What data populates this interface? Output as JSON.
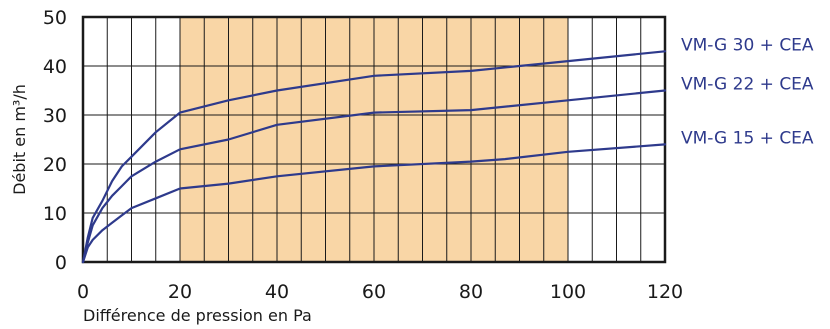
{
  "chart_data": {
    "type": "line",
    "title": "",
    "xlabel": "Différence de pression en Pa",
    "ylabel": "Débit en m³/h",
    "xlim": [
      0,
      120
    ],
    "ylim": [
      0,
      50
    ],
    "xticks": [
      0,
      20,
      40,
      60,
      80,
      100,
      120
    ],
    "yticks": [
      0,
      10,
      20,
      30,
      40,
      50
    ],
    "grid": true,
    "highlight_range_x": [
      20,
      100
    ],
    "highlight_color": "#f9d6a6",
    "line_color": "#2e3a8c",
    "series": [
      {
        "name": "VM-G 30 + CEA",
        "x": [
          0,
          1,
          2,
          4,
          6,
          8,
          10,
          15,
          20,
          30,
          40,
          60,
          80,
          90,
          100,
          120
        ],
        "y": [
          0,
          5,
          9,
          12.5,
          16.5,
          19.5,
          21.5,
          26.5,
          30.5,
          33,
          35,
          38,
          39,
          40,
          41,
          43
        ]
      },
      {
        "name": "VM-G 22 + CEA",
        "x": [
          0,
          1,
          2,
          4,
          6,
          8,
          10,
          15,
          20,
          30,
          40,
          60,
          80,
          100,
          120
        ],
        "y": [
          0,
          4,
          7.5,
          11,
          13.5,
          15.5,
          17.5,
          20.5,
          23,
          25,
          28,
          30.5,
          31,
          33,
          35
        ]
      },
      {
        "name": "VM-G 15 + CEA",
        "x": [
          0,
          1,
          2,
          4,
          6,
          8,
          10,
          15,
          20,
          30,
          40,
          60,
          80,
          87,
          100,
          120
        ],
        "y": [
          0,
          3,
          4.5,
          6.5,
          8,
          9.5,
          11,
          13,
          15,
          16,
          17.5,
          19.5,
          20.5,
          21,
          22.5,
          24
        ]
      }
    ]
  }
}
